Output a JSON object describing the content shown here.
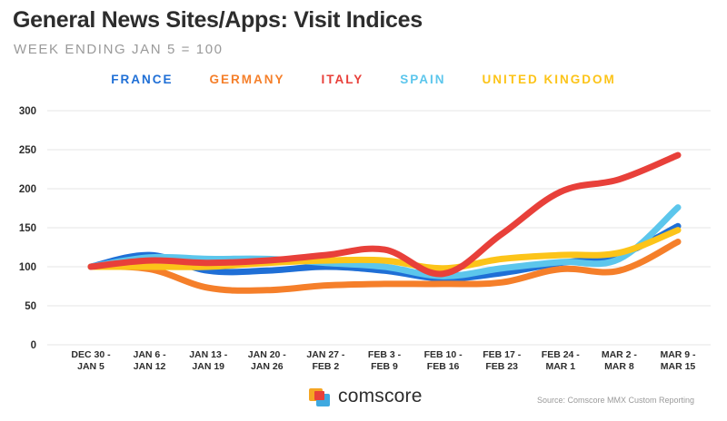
{
  "header": {
    "title": "General News Sites/Apps: Visit Indices",
    "subtitle": "WEEK ENDING JAN 5 = 100"
  },
  "footer": {
    "brand": "comscore",
    "logo_icon": "comscore-logo-icon",
    "source": "Source: Comscore MMX Custom Reporting"
  },
  "chart_data": {
    "type": "line",
    "title": "General News Sites/Apps: Visit Indices",
    "subtitle": "WEEK ENDING JAN 5 = 100",
    "xlabel": "",
    "ylabel": "",
    "ylim": [
      0,
      300
    ],
    "yticks": [
      0,
      50,
      100,
      150,
      200,
      250,
      300
    ],
    "grid": true,
    "legend_position": "top-center",
    "categories": [
      [
        "DEC 30 -",
        "JAN 5"
      ],
      [
        "JAN 6 -",
        "JAN 12"
      ],
      [
        "JAN 13 -",
        "JAN 19"
      ],
      [
        "JAN 20 -",
        "JAN 26"
      ],
      [
        "JAN 27 -",
        "FEB 2"
      ],
      [
        "FEB 3 -",
        "FEB 9"
      ],
      [
        "FEB 10 -",
        "FEB 16"
      ],
      [
        "FEB 17 -",
        "FEB 23"
      ],
      [
        "FEB 24 -",
        "MAR 1"
      ],
      [
        "MAR 2 -",
        "MAR 8"
      ],
      [
        "MAR 9 -",
        "MAR 15"
      ]
    ],
    "series": [
      {
        "name": "FRANCE",
        "color": "#1f6fd6",
        "values": [
          100,
          115,
          95,
          95,
          100,
          95,
          85,
          92,
          105,
          115,
          152
        ]
      },
      {
        "name": "GERMANY",
        "color": "#f57f2a",
        "values": [
          100,
          97,
          73,
          70,
          76,
          78,
          78,
          80,
          97,
          95,
          132
        ]
      },
      {
        "name": "SPAIN",
        "color": "#5cc6ec",
        "values": [
          100,
          112,
          110,
          110,
          105,
          100,
          88,
          98,
          106,
          110,
          176
        ]
      },
      {
        "name": "UNITED KINGDOM",
        "color": "#fcc419",
        "values": [
          100,
          100,
          100,
          105,
          108,
          108,
          98,
          110,
          115,
          118,
          147
        ]
      },
      {
        "name": "ITALY",
        "color": "#e8403a",
        "values": [
          100,
          108,
          105,
          108,
          115,
          122,
          91,
          142,
          196,
          212,
          243
        ]
      }
    ]
  }
}
